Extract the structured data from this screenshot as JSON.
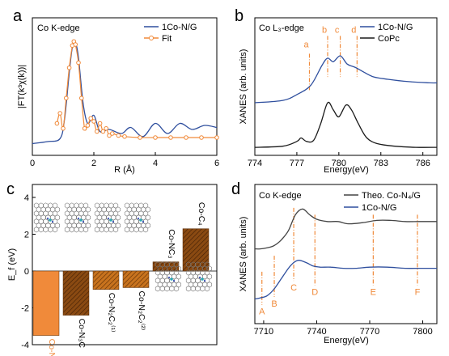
{
  "panels": {
    "a": {
      "letter": "a",
      "inset_title": "Co K-edge",
      "xlabel": "R (Å)",
      "ylabel": "|FT(k³χ(k))|",
      "xlim": [
        0,
        6
      ],
      "xticks": [
        "0",
        "2",
        "4",
        "6"
      ],
      "legend": [
        "1Co-N/G",
        "Fit"
      ]
    },
    "b": {
      "letter": "b",
      "inset_title": "Co L₃-edge",
      "xlabel": "Energy(eV)",
      "ylabel": "XANES (arb. units)",
      "xlim": [
        774,
        787
      ],
      "xticks": [
        "774",
        "777",
        "780",
        "783",
        "786"
      ],
      "legend": [
        "1Co-N/G",
        "CoPc"
      ],
      "peak_labels": [
        "a",
        "b",
        "c",
        "d"
      ]
    },
    "c": {
      "letter": "c",
      "ylabel": "E_f (eV)",
      "ylim": [
        -4,
        4
      ],
      "yticks": [
        "4",
        "2",
        "0",
        "-2",
        "-4"
      ],
      "bar_labels": [
        "Co-N₄",
        "Co-N₃C",
        "Co-N₂C₂⁽¹⁾",
        "Co-N₂C₂⁽²⁾",
        "Co-NC₃",
        "Co-C₄"
      ]
    },
    "d": {
      "letter": "d",
      "inset_title": "Co K-edge",
      "xlabel": "Energy(eV)",
      "ylabel": "XANES (arb. units)",
      "xlim": [
        7705,
        7808
      ],
      "xticks": [
        "7710",
        "7740",
        "7770",
        "7800"
      ],
      "legend": [
        "Theo. Co-N₄/G",
        "1Co-N/G"
      ],
      "feature_labels": [
        "A",
        "B",
        "C",
        "D",
        "E",
        "F"
      ]
    }
  },
  "colors": {
    "blue": "#2f4f9e",
    "orange": "#f08a3a",
    "black": "#1a1a1a",
    "gray": "#444444"
  },
  "chart_data": [
    {
      "type": "line",
      "panel": "a",
      "xlim": [
        0,
        6
      ],
      "series": [
        {
          "name": "1Co-N/G",
          "x": [
            0,
            0.5,
            0.9,
            1.05,
            1.2,
            1.3,
            1.4,
            1.5,
            1.65,
            1.8,
            2.0,
            2.2,
            2.5,
            2.9,
            3.2,
            3.6,
            4.0,
            4.4,
            4.8,
            5.2,
            5.6,
            6.0
          ],
          "y": [
            0.1,
            0.12,
            0.15,
            0.35,
            0.8,
            1.05,
            1.1,
            0.95,
            0.5,
            0.3,
            0.38,
            0.22,
            0.24,
            0.2,
            0.26,
            0.17,
            0.3,
            0.2,
            0.3,
            0.24,
            0.28,
            0.26
          ]
        },
        {
          "name": "Fit",
          "x": [
            0.8,
            0.9,
            1.0,
            1.1,
            1.2,
            1.3,
            1.35,
            1.4,
            1.5,
            1.6,
            1.7,
            1.8,
            1.9,
            2.0,
            2.1,
            2.2,
            2.3,
            2.4,
            2.5,
            2.6,
            2.8,
            3.0,
            3.5,
            4.0,
            4.5,
            5.0,
            5.5,
            6.0
          ],
          "y": [
            0.3,
            0.4,
            0.25,
            0.55,
            0.85,
            1.07,
            1.11,
            1.08,
            0.9,
            0.55,
            0.25,
            0.28,
            0.35,
            0.32,
            0.22,
            0.3,
            0.22,
            0.25,
            0.18,
            0.2,
            0.18,
            0.17,
            0.16,
            0.16,
            0.16,
            0.16,
            0.16,
            0.16
          ]
        }
      ]
    },
    {
      "type": "line",
      "panel": "b",
      "xlim": [
        774,
        787
      ],
      "series": [
        {
          "name": "1Co-N/G",
          "x": [
            774,
            776,
            777,
            778,
            778.8,
            779.2,
            779.6,
            780.1,
            780.6,
            781.2,
            781.8,
            782.5,
            783.5,
            785,
            786.5,
            787
          ],
          "y": [
            0.4,
            0.42,
            0.47,
            0.55,
            0.72,
            0.78,
            0.75,
            0.8,
            0.73,
            0.7,
            0.66,
            0.62,
            0.6,
            0.58,
            0.57,
            0.57
          ]
        },
        {
          "name": "CoPc",
          "x": [
            774,
            776,
            777,
            777.3,
            777.7,
            778.2,
            778.7,
            779.2,
            779.6,
            780.0,
            780.5,
            780.9,
            781.4,
            782,
            782.8,
            784,
            785.5,
            787
          ],
          "y": [
            0.02,
            0.03,
            0.07,
            0.1,
            0.07,
            0.08,
            0.22,
            0.4,
            0.34,
            0.28,
            0.38,
            0.34,
            0.22,
            0.1,
            0.05,
            0.03,
            0.02,
            0.02
          ]
        }
      ],
      "markers": [
        {
          "label": "a",
          "x": 777.9
        },
        {
          "label": "b",
          "x": 779.2
        },
        {
          "label": "c",
          "x": 780.1
        },
        {
          "label": "d",
          "x": 781.3
        }
      ]
    },
    {
      "type": "bar",
      "panel": "c",
      "ylim": [
        -4,
        4
      ],
      "categories": [
        "Co-N₄",
        "Co-N₃C",
        "Co-N₂C₂⁽¹⁾",
        "Co-N₂C₂⁽²⁾",
        "Co-NC₃",
        "Co-C₄"
      ],
      "values": [
        -3.5,
        -2.4,
        -1.0,
        -0.9,
        0.5,
        2.3
      ]
    },
    {
      "type": "line",
      "panel": "d",
      "xlim": [
        7705,
        7808
      ],
      "series": [
        {
          "name": "Theo. Co-N₄/G",
          "x": [
            7705,
            7708,
            7712,
            7716,
            7720,
            7724,
            7728,
            7732,
            7736,
            7740,
            7746,
            7752,
            7758,
            7766,
            7774,
            7782,
            7790,
            7798,
            7808
          ],
          "y": [
            0.62,
            0.62,
            0.63,
            0.65,
            0.7,
            0.78,
            0.92,
            0.97,
            0.92,
            0.88,
            0.86,
            0.86,
            0.84,
            0.85,
            0.87,
            0.87,
            0.86,
            0.86,
            0.86
          ]
        },
        {
          "name": "1Co-N/G",
          "x": [
            7705,
            7708,
            7712,
            7716,
            7720,
            7724,
            7727,
            7730,
            7734,
            7738,
            7742,
            7748,
            7755,
            7762,
            7770,
            7780,
            7790,
            7800,
            7808
          ],
          "y": [
            0.18,
            0.19,
            0.21,
            0.27,
            0.36,
            0.45,
            0.5,
            0.52,
            0.5,
            0.47,
            0.46,
            0.46,
            0.45,
            0.45,
            0.46,
            0.46,
            0.45,
            0.45,
            0.45
          ]
        }
      ],
      "markers": [
        {
          "label": "A",
          "x": 7709
        },
        {
          "label": "B",
          "x": 7716
        },
        {
          "label": "C",
          "x": 7727
        },
        {
          "label": "D",
          "x": 7739
        },
        {
          "label": "E",
          "x": 7772
        },
        {
          "label": "F",
          "x": 7797
        }
      ]
    }
  ]
}
